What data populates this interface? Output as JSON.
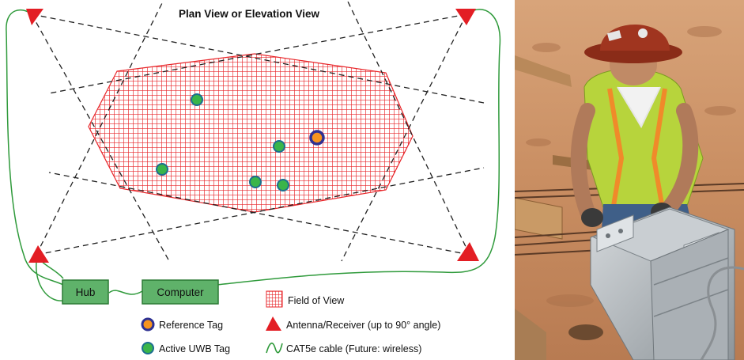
{
  "diagram": {
    "title": "Plan View or Elevation View",
    "hub_label": "Hub",
    "computer_label": "Computer",
    "legend": {
      "field_of_view": "Field of View",
      "reference_tag": "Reference Tag",
      "antenna": "Antenna/Receiver (up to 90° angle)",
      "active_tag": "Active UWB Tag",
      "cable": "CAT5e cable (Future: wireless)"
    },
    "colors": {
      "grid": "#e8262a",
      "active_tag_fill": "#3ab54a",
      "active_tag_ring": "#1b6e8f",
      "reference_tag_fill": "#f7941d",
      "reference_tag_ring": "#2e3192",
      "antenna": "#e31e24",
      "cable": "#2f9a3b",
      "box_fill": "#5fb26a",
      "box_border": "#2c7a35"
    }
  },
  "photo": {
    "description_icon": "construction-worker-photo"
  }
}
